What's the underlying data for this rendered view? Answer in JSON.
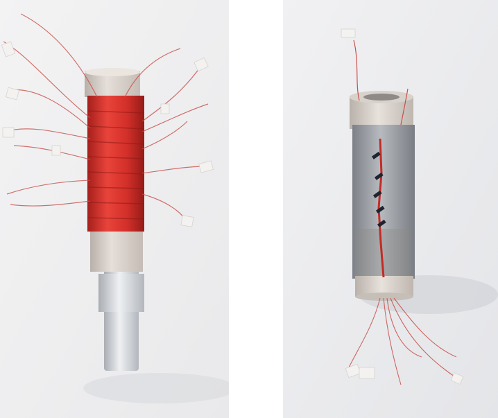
{
  "figure": {
    "panels": [
      {
        "id": "left",
        "subject": "coil-wound-sensor-on-aluminum-rod"
      },
      {
        "id": "right",
        "subject": "metal-sleeved-sensor-with-wire-leads"
      }
    ]
  },
  "colors": {
    "background": "#ffffff",
    "copper_coil": "#d8322c",
    "plastic_cap": "#dcd5cf",
    "aluminum": "#cfd3d8",
    "steel_sleeve": "#9a9ea4",
    "wire": "#c8504a",
    "tape": "#f4f2f0"
  }
}
